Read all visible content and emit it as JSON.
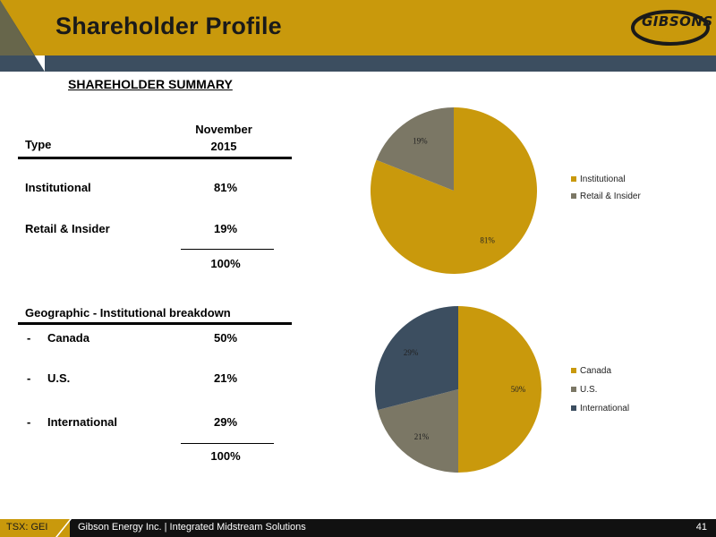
{
  "header": {
    "title": "Shareholder Profile",
    "logo_text": "GIBSONS"
  },
  "section_title": "SHAREHOLDER SUMMARY",
  "table": {
    "type_header": "Type",
    "column_header_line1": "November",
    "column_header_line2": "2015",
    "ownership_rows": [
      {
        "label": "Institutional",
        "value": "81%"
      },
      {
        "label": "Retail & Insider",
        "value": "19%"
      }
    ],
    "ownership_total": "100%",
    "geo_header": "Geographic - Institutional breakdown",
    "geo_rows": [
      {
        "dash": "-",
        "label": "Canada",
        "value": "50%"
      },
      {
        "dash": "-",
        "label": "U.S.",
        "value": "21%"
      },
      {
        "dash": "-",
        "label": "International",
        "value": "29%"
      }
    ],
    "geo_total": "100%"
  },
  "colors": {
    "gold": "#c9990c",
    "gray": "#7b7765",
    "slate": "#3c4e60"
  },
  "chart_data": [
    {
      "type": "pie",
      "labels": [
        "Institutional",
        "Retail & Insider"
      ],
      "values": [
        81,
        19
      ],
      "data_labels": [
        "81%",
        "19%"
      ],
      "colors": [
        "#c9990c",
        "#7b7765"
      ],
      "legend": "right"
    },
    {
      "type": "pie",
      "labels": [
        "Canada",
        "U.S.",
        "International"
      ],
      "values": [
        50,
        21,
        29
      ],
      "data_labels": [
        "50%",
        "21%",
        "29%"
      ],
      "colors": [
        "#c9990c",
        "#7b7765",
        "#3c4e60"
      ],
      "legend": "right"
    }
  ],
  "footer": {
    "ticker": "TSX: GEI",
    "text": "Gibson Energy Inc.   |   Integrated Midstream Solutions",
    "page_number": "41"
  }
}
